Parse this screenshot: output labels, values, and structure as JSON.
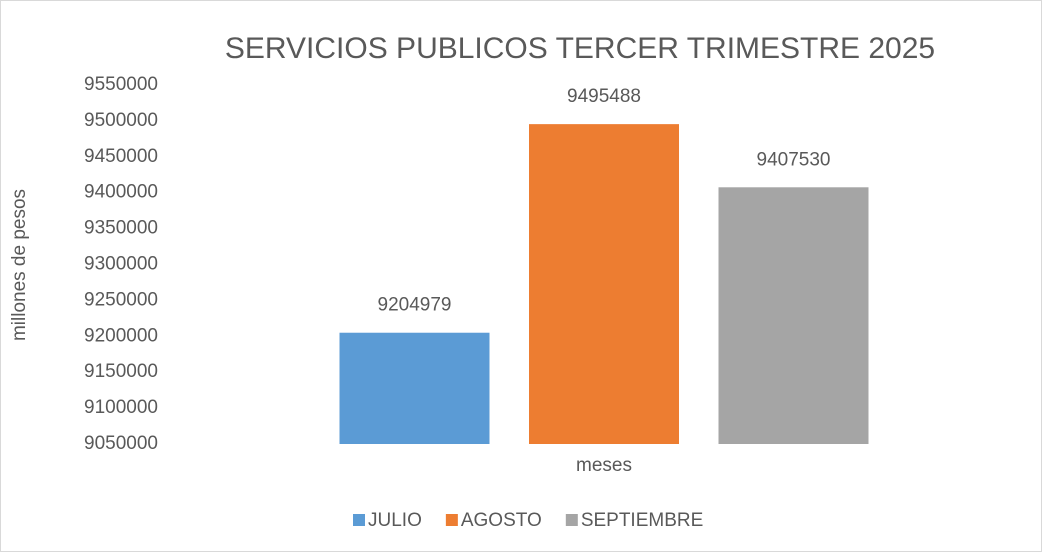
{
  "chart_data": {
    "type": "bar",
    "title": "SERVICIOS PUBLICOS TERCER TRIMESTRE 2025",
    "x_label": "meses",
    "y_label": "millones de pesos",
    "categories": [
      null
    ],
    "series": [
      {
        "name": "JULIO",
        "color": "#5b9bd5",
        "values": [
          9204979
        ]
      },
      {
        "name": "AGOSTO",
        "color": "#ed7d31",
        "values": [
          9495488
        ]
      },
      {
        "name": "SEPTIEMBRE",
        "color": "#a5a5a5",
        "values": [
          9407530
        ]
      }
    ],
    "ylim": [
      9050000,
      9550000
    ],
    "yticks": [
      9050000,
      9100000,
      9150000,
      9200000,
      9250000,
      9300000,
      9350000,
      9400000,
      9450000,
      9500000,
      9550000
    ],
    "grid": false,
    "legend": "bottom"
  }
}
